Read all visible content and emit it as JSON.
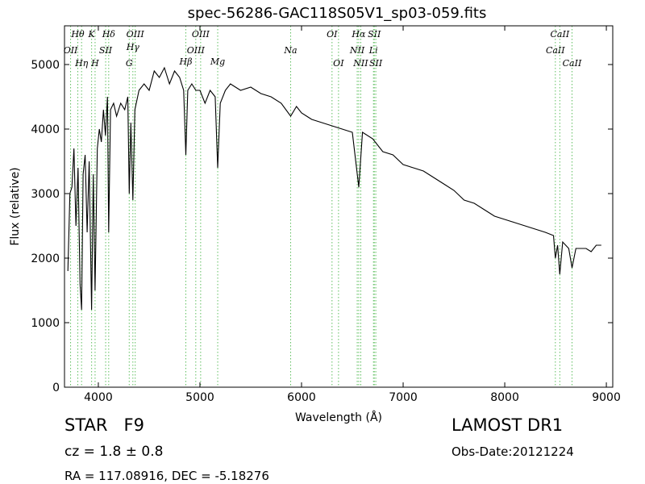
{
  "chart_data": {
    "type": "line",
    "title": "spec-56286-GAC118S05V1_sp03-059.fits",
    "x_label": "Wavelength (Å)",
    "y_label": "Flux (relative)",
    "xlim": [
      3667,
      9063
    ],
    "ylim": [
      0,
      5600
    ],
    "xticks": [
      4000,
      5000,
      6000,
      7000,
      8000,
      9000
    ],
    "yticks": [
      0,
      1000,
      2000,
      3000,
      4000,
      5000
    ],
    "x": [
      3700,
      3720,
      3740,
      3760,
      3780,
      3800,
      3820,
      3835,
      3850,
      3870,
      3890,
      3910,
      3934,
      3950,
      3968,
      3990,
      4010,
      4030,
      4050,
      4070,
      4090,
      4102,
      4120,
      4150,
      4180,
      4220,
      4260,
      4290,
      4304,
      4320,
      4340,
      4360,
      4400,
      4450,
      4500,
      4550,
      4600,
      4650,
      4700,
      4750,
      4800,
      4840,
      4861,
      4880,
      4920,
      4960,
      5000,
      5050,
      5100,
      5150,
      5175,
      5200,
      5250,
      5300,
      5400,
      5500,
      5600,
      5700,
      5800,
      5893,
      5950,
      6000,
      6100,
      6200,
      6300,
      6400,
      6500,
      6563,
      6600,
      6700,
      6800,
      6900,
      7000,
      7100,
      7200,
      7300,
      7400,
      7500,
      7600,
      7700,
      7800,
      7900,
      8000,
      8100,
      8200,
      8300,
      8400,
      8480,
      8498,
      8520,
      8542,
      8570,
      8630,
      8662,
      8700,
      8800,
      8850,
      8900,
      8950
    ],
    "series": [
      {
        "name": "Flux",
        "color": "#000000",
        "values": [
          1800,
          3000,
          3100,
          3700,
          2500,
          3400,
          1600,
          1200,
          3300,
          3600,
          2400,
          3500,
          1200,
          3300,
          1500,
          3700,
          4000,
          3800,
          4300,
          3900,
          4500,
          2400,
          4300,
          4400,
          4200,
          4400,
          4300,
          4500,
          3000,
          4100,
          2900,
          4300,
          4600,
          4700,
          4600,
          4900,
          4800,
          4950,
          4700,
          4900,
          4800,
          4600,
          3600,
          4600,
          4700,
          4600,
          4600,
          4400,
          4600,
          4500,
          3400,
          4400,
          4600,
          4700,
          4600,
          4650,
          4550,
          4500,
          4400,
          4200,
          4350,
          4250,
          4150,
          4100,
          4050,
          4000,
          3950,
          3100,
          3950,
          3850,
          3650,
          3600,
          3450,
          3400,
          3350,
          3250,
          3150,
          3050,
          2900,
          2850,
          2750,
          2650,
          2600,
          2550,
          2500,
          2450,
          2400,
          2350,
          2000,
          2200,
          1750,
          2250,
          2150,
          1850,
          2150,
          2150,
          2100,
          2200,
          2200
        ]
      }
    ],
    "line_color": "#5fbf5f",
    "spectral_lines": [
      {
        "label": "OII",
        "x": 3727
      },
      {
        "label": "Hθ",
        "x": 3798
      },
      {
        "label": "Hη",
        "x": 3835
      },
      {
        "label": "K",
        "x": 3934
      },
      {
        "label": "H",
        "x": 3968
      },
      {
        "label": "SII",
        "x": 4072
      },
      {
        "label": "Hδ",
        "x": 4102
      },
      {
        "label": "G",
        "x": 4304
      },
      {
        "label": "Hγ",
        "x": 4340
      },
      {
        "label": "OIII",
        "x": 4363
      },
      {
        "label": "Hβ",
        "x": 4861
      },
      {
        "label": "OIII",
        "x": 4959
      },
      {
        "label": "OIII",
        "x": 5007
      },
      {
        "label": "Mg",
        "x": 5175
      },
      {
        "label": "Na",
        "x": 5893
      },
      {
        "label": "OI",
        "x": 6300
      },
      {
        "label": "OI",
        "x": 6364
      },
      {
        "label": "NII",
        "x": 6548
      },
      {
        "label": "Hα",
        "x": 6563
      },
      {
        "label": "NII",
        "x": 6583
      },
      {
        "label": "Li",
        "x": 6708
      },
      {
        "label": "SII",
        "x": 6716
      },
      {
        "label": "SII",
        "x": 6731
      },
      {
        "label": "CaII",
        "x": 8498
      },
      {
        "label": "CaII",
        "x": 8542
      },
      {
        "label": "CaII",
        "x": 8662
      }
    ],
    "object_class": "STAR   F9",
    "redshift": "cz = 1.8 ± 0.8",
    "coords": "RA = 117.08916, DEC = -5.18276",
    "survey": "LAMOST DR1",
    "obs_date": "Obs-Date:20121224"
  }
}
